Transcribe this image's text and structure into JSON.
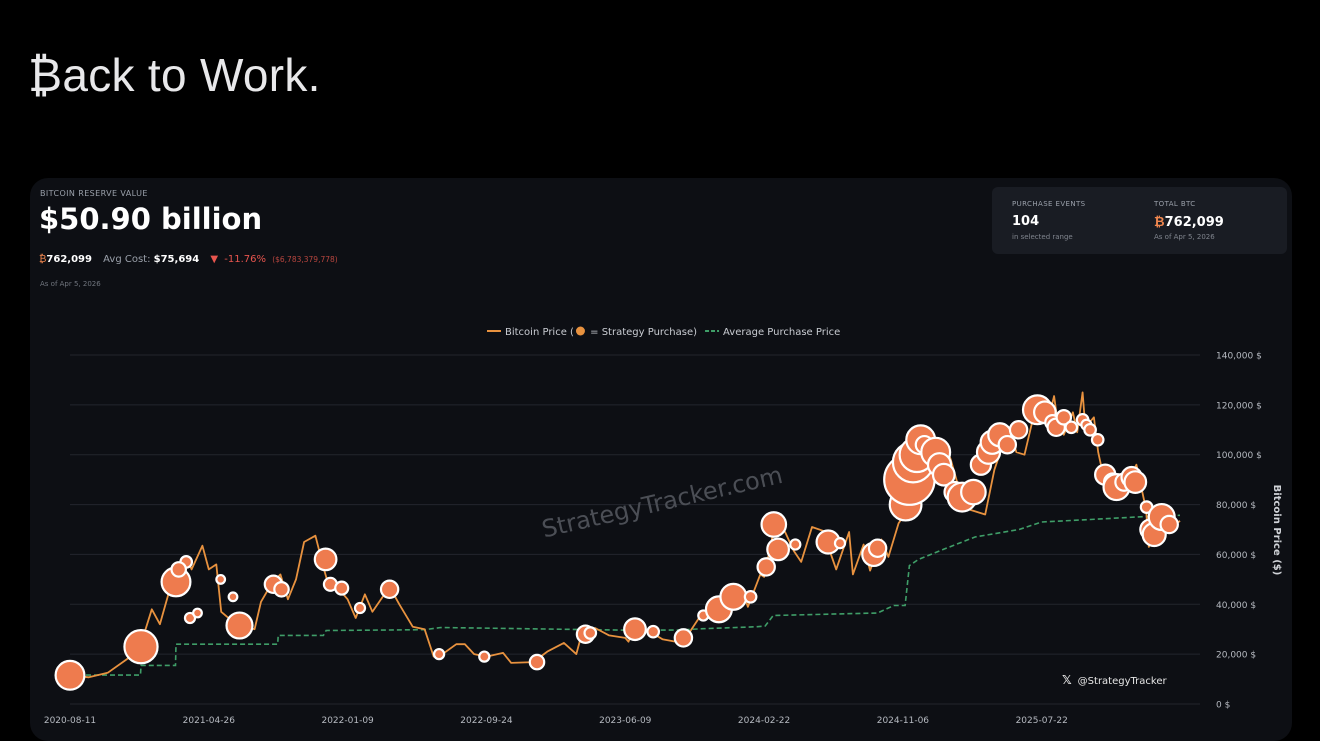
{
  "headline": "₿ack to Work.",
  "card": {
    "reserve_label": "BITCOIN RESERVE VALUE",
    "reserve_value": "$50.90 billion",
    "btc_symbol": "₿",
    "btc_holdings": "762,099",
    "avg_cost_label": "Avg Cost:",
    "avg_cost": "$75,694",
    "change_arrow": "▼",
    "change_pct": "-11.76%",
    "change_abs": "($6,783,379,778)",
    "as_of": "As of Apr 5, 2026"
  },
  "stats": {
    "events_label": "PURCHASE EVENTS",
    "events_value": "104",
    "events_note": "in selected range",
    "total_label": "TOTAL BTC",
    "total_symbol": "₿",
    "total_value": "762,099",
    "total_note": "As of Apr 5, 2026"
  },
  "watermark": "StrategyTracker.com",
  "social": {
    "icon": "x-logo-icon",
    "handle": "@StrategyTracker"
  },
  "colors": {
    "price": "#e8923f",
    "purchase": "#ee7b4e",
    "avg": "#3f9e68",
    "grid": "#23262d"
  },
  "chart_data": {
    "type": "line",
    "legend": [
      {
        "text": "Bitcoin Price (",
        "icon": "coin-icon",
        "text2": " = Strategy Purchase)"
      },
      {
        "text": "Average Purchase Price"
      }
    ],
    "legend_placement": "top",
    "ylabel": "Bitcoin Price ($)",
    "ylim": [
      0,
      140000
    ],
    "xlim": [
      "2020-08-11",
      "2026-04-05"
    ],
    "x_ticks": [
      "2020-08-11",
      "2021-04-26",
      "2022-01-09",
      "2022-09-24",
      "2023-06-09",
      "2024-02-22",
      "2024-11-06",
      "2025-07-22"
    ],
    "y_ticks": [
      "0 $",
      "20,000 $",
      "40,000 $",
      "60,000 $",
      "80,000 $",
      "100,000 $",
      "120,000 $",
      "140,000 $"
    ],
    "y_tick_values": [
      0,
      20000,
      40000,
      60000,
      80000,
      100000,
      120000,
      140000
    ],
    "grid": true,
    "series": [
      {
        "name": "Bitcoin Price",
        "style": "line",
        "points": [
          [
            "2020-08-11",
            11500
          ],
          [
            "2020-09-15",
            10700
          ],
          [
            "2020-10-20",
            12500
          ],
          [
            "2020-11-25",
            18000
          ],
          [
            "2020-12-20",
            23500
          ],
          [
            "2021-01-10",
            38000
          ],
          [
            "2021-01-25",
            32000
          ],
          [
            "2021-02-15",
            48000
          ],
          [
            "2021-02-25",
            46000
          ],
          [
            "2021-03-15",
            59000
          ],
          [
            "2021-03-25",
            54000
          ],
          [
            "2021-04-14",
            63500
          ],
          [
            "2021-04-26",
            54000
          ],
          [
            "2021-05-10",
            56000
          ],
          [
            "2021-05-19",
            37000
          ],
          [
            "2021-05-30",
            35000
          ],
          [
            "2021-06-22",
            31500
          ],
          [
            "2021-07-20",
            30000
          ],
          [
            "2021-08-01",
            41000
          ],
          [
            "2021-08-20",
            48000
          ],
          [
            "2021-09-06",
            52000
          ],
          [
            "2021-09-20",
            42000
          ],
          [
            "2021-10-05",
            50000
          ],
          [
            "2021-10-20",
            65000
          ],
          [
            "2021-11-10",
            67500
          ],
          [
            "2021-11-26",
            54000
          ],
          [
            "2021-12-04",
            48000
          ],
          [
            "2021-12-20",
            47000
          ],
          [
            "2022-01-09",
            42000
          ],
          [
            "2022-01-24",
            34500
          ],
          [
            "2022-02-10",
            44000
          ],
          [
            "2022-02-24",
            37000
          ],
          [
            "2022-03-28",
            47000
          ],
          [
            "2022-04-15",
            40000
          ],
          [
            "2022-05-10",
            31000
          ],
          [
            "2022-06-01",
            30000
          ],
          [
            "2022-06-18",
            19000
          ],
          [
            "2022-07-01",
            19500
          ],
          [
            "2022-07-30",
            24000
          ],
          [
            "2022-08-15",
            24000
          ],
          [
            "2022-09-01",
            20000
          ],
          [
            "2022-09-24",
            19000
          ],
          [
            "2022-10-25",
            20500
          ],
          [
            "2022-11-09",
            16500
          ],
          [
            "2022-12-20",
            16800
          ],
          [
            "2023-01-15",
            21000
          ],
          [
            "2023-02-15",
            24500
          ],
          [
            "2023-03-10",
            20000
          ],
          [
            "2023-03-20",
            28000
          ],
          [
            "2023-04-14",
            30500
          ],
          [
            "2023-05-10",
            27500
          ],
          [
            "2023-06-09",
            26500
          ],
          [
            "2023-06-15",
            25000
          ],
          [
            "2023-06-25",
            30500
          ],
          [
            "2023-07-15",
            30300
          ],
          [
            "2023-08-17",
            26000
          ],
          [
            "2023-09-11",
            25000
          ],
          [
            "2023-10-01",
            27000
          ],
          [
            "2023-10-24",
            34500
          ],
          [
            "2023-11-15",
            37000
          ],
          [
            "2023-12-08",
            44000
          ],
          [
            "2024-01-11",
            46500
          ],
          [
            "2024-01-23",
            39000
          ],
          [
            "2024-02-15",
            52000
          ],
          [
            "2024-02-22",
            51000
          ],
          [
            "2024-03-14",
            73000
          ],
          [
            "2024-04-01",
            69000
          ],
          [
            "2024-04-17",
            61500
          ],
          [
            "2024-05-01",
            57000
          ],
          [
            "2024-05-21",
            71000
          ],
          [
            "2024-06-10",
            69500
          ],
          [
            "2024-07-05",
            54000
          ],
          [
            "2024-07-29",
            69000
          ],
          [
            "2024-08-05",
            52000
          ],
          [
            "2024-08-25",
            64000
          ],
          [
            "2024-09-06",
            53500
          ],
          [
            "2024-09-27",
            66000
          ],
          [
            "2024-10-10",
            59000
          ],
          [
            "2024-10-29",
            72500
          ],
          [
            "2024-11-06",
            75000
          ],
          [
            "2024-11-13",
            90000
          ],
          [
            "2024-11-22",
            98500
          ],
          [
            "2024-12-05",
            103000
          ],
          [
            "2024-12-17",
            106500
          ],
          [
            "2024-12-30",
            92000
          ],
          [
            "2025-01-20",
            106000
          ],
          [
            "2025-02-03",
            98000
          ],
          [
            "2025-02-28",
            79000
          ],
          [
            "2025-03-10",
            78000
          ],
          [
            "2025-04-08",
            76000
          ],
          [
            "2025-04-25",
            94000
          ],
          [
            "2025-05-22",
            111000
          ],
          [
            "2025-06-05",
            101000
          ],
          [
            "2025-06-20",
            100000
          ],
          [
            "2025-07-14",
            122000
          ],
          [
            "2025-07-22",
            119000
          ],
          [
            "2025-08-02",
            113000
          ],
          [
            "2025-08-14",
            123500
          ],
          [
            "2025-08-20",
            114000
          ],
          [
            "2025-09-01",
            108000
          ],
          [
            "2025-09-18",
            117000
          ],
          [
            "2025-09-26",
            109000
          ],
          [
            "2025-10-06",
            125000
          ],
          [
            "2025-10-11",
            111000
          ],
          [
            "2025-10-27",
            115000
          ],
          [
            "2025-11-04",
            101000
          ],
          [
            "2025-11-21",
            84000
          ],
          [
            "2025-12-05",
            92000
          ],
          [
            "2025-12-25",
            87000
          ],
          [
            "2026-01-14",
            96000
          ],
          [
            "2026-02-01",
            78000
          ],
          [
            "2026-02-06",
            63000
          ],
          [
            "2026-02-20",
            67000
          ],
          [
            "2026-03-10",
            69000
          ],
          [
            "2026-03-25",
            71500
          ],
          [
            "2026-04-05",
            73500
          ]
        ]
      },
      {
        "name": "Average Purchase Price",
        "style": "dashed",
        "points": [
          [
            "2020-08-11",
            11600
          ],
          [
            "2020-12-20",
            11600
          ],
          [
            "2020-12-21",
            15500
          ],
          [
            "2021-02-23",
            15500
          ],
          [
            "2021-02-24",
            24000
          ],
          [
            "2021-09-01",
            24000
          ],
          [
            "2021-09-02",
            27500
          ],
          [
            "2021-11-25",
            27500
          ],
          [
            "2021-11-30",
            29500
          ],
          [
            "2022-06-01",
            29800
          ],
          [
            "2022-07-01",
            30700
          ],
          [
            "2023-06-15",
            29600
          ],
          [
            "2023-09-15",
            29700
          ],
          [
            "2023-11-01",
            30200
          ],
          [
            "2024-02-10",
            31000
          ],
          [
            "2024-02-24",
            31300
          ],
          [
            "2024-03-10",
            35500
          ],
          [
            "2024-09-20",
            36500
          ],
          [
            "2024-10-20",
            39500
          ],
          [
            "2024-11-10",
            39500
          ],
          [
            "2024-11-18",
            55500
          ],
          [
            "2024-12-05",
            58000
          ],
          [
            "2025-01-20",
            62000
          ],
          [
            "2025-03-20",
            67000
          ],
          [
            "2025-06-10",
            70000
          ],
          [
            "2025-07-22",
            73000
          ],
          [
            "2025-10-20",
            74000
          ],
          [
            "2026-02-01",
            75200
          ],
          [
            "2026-04-05",
            75694
          ]
        ]
      },
      {
        "name": "Strategy Purchase",
        "style": "bubbles",
        "points": [
          [
            "2020-08-11",
            11500,
            20
          ],
          [
            "2020-12-21",
            23000,
            23
          ],
          [
            "2021-02-24",
            49000,
            20
          ],
          [
            "2021-03-15",
            57000,
            8
          ],
          [
            "2021-03-01",
            54000,
            10
          ],
          [
            "2021-03-22",
            34500,
            7
          ],
          [
            "2021-04-05",
            36500,
            6
          ],
          [
            "2021-05-18",
            50000,
            6
          ],
          [
            "2021-06-10",
            43000,
            6
          ],
          [
            "2021-06-22",
            31500,
            18
          ],
          [
            "2021-08-24",
            48000,
            12
          ],
          [
            "2021-09-08",
            46000,
            10
          ],
          [
            "2021-11-29",
            58000,
            15
          ],
          [
            "2021-12-08",
            48000,
            9
          ],
          [
            "2021-12-29",
            46500,
            9
          ],
          [
            "2022-02-01",
            38500,
            7
          ],
          [
            "2022-03-28",
            46000,
            12
          ],
          [
            "2022-06-28",
            20000,
            7
          ],
          [
            "2022-09-20",
            19000,
            7
          ],
          [
            "2022-12-27",
            16800,
            10
          ],
          [
            "2023-03-27",
            28000,
            12
          ],
          [
            "2023-04-05",
            28500,
            8
          ],
          [
            "2023-06-27",
            30000,
            15
          ],
          [
            "2023-07-31",
            29000,
            8
          ],
          [
            "2023-09-25",
            26500,
            12
          ],
          [
            "2023-11-01",
            35500,
            7
          ],
          [
            "2023-11-30",
            38000,
            18
          ],
          [
            "2023-12-27",
            43000,
            18
          ],
          [
            "2024-01-28",
            43000,
            8
          ],
          [
            "2024-02-26",
            55000,
            12
          ],
          [
            "2024-03-11",
            72000,
            17
          ],
          [
            "2024-03-19",
            62000,
            15
          ],
          [
            "2024-04-20",
            64000,
            7
          ],
          [
            "2024-06-20",
            65000,
            16
          ],
          [
            "2024-07-12",
            64500,
            7
          ],
          [
            "2024-09-13",
            60000,
            16
          ],
          [
            "2024-09-20",
            62500,
            12
          ],
          [
            "2024-11-11",
            80000,
            22
          ],
          [
            "2024-11-18",
            90000,
            35
          ],
          [
            "2024-11-25",
            97000,
            28
          ],
          [
            "2024-12-02",
            100000,
            24
          ],
          [
            "2024-12-09",
            106000,
            20
          ],
          [
            "2024-12-16",
            104000,
            12
          ],
          [
            "2025-01-06",
            101000,
            20
          ],
          [
            "2025-01-13",
            96000,
            16
          ],
          [
            "2025-01-21",
            92000,
            15
          ],
          [
            "2025-02-10",
            85000,
            14
          ],
          [
            "2025-02-24",
            83000,
            20
          ],
          [
            "2025-03-17",
            85000,
            17
          ],
          [
            "2025-03-31",
            96000,
            14
          ],
          [
            "2025-04-14",
            101000,
            16
          ],
          [
            "2025-04-21",
            105000,
            16
          ],
          [
            "2025-05-05",
            108000,
            16
          ],
          [
            "2025-05-19",
            104000,
            12
          ],
          [
            "2025-06-09",
            110000,
            12
          ],
          [
            "2025-07-14",
            118000,
            20
          ],
          [
            "2025-07-28",
            117000,
            15
          ],
          [
            "2025-08-11",
            113000,
            10
          ],
          [
            "2025-08-18",
            111000,
            12
          ],
          [
            "2025-09-01",
            115000,
            10
          ],
          [
            "2025-09-15",
            111000,
            8
          ],
          [
            "2025-10-06",
            114000,
            8
          ],
          [
            "2025-10-13",
            112000,
            7
          ],
          [
            "2025-10-20",
            110000,
            8
          ],
          [
            "2025-11-03",
            106000,
            8
          ],
          [
            "2025-11-17",
            92000,
            14
          ],
          [
            "2025-12-01",
            89000,
            12
          ],
          [
            "2025-12-08",
            87000,
            18
          ],
          [
            "2025-12-22",
            89000,
            12
          ],
          [
            "2026-01-05",
            91000,
            14
          ],
          [
            "2026-01-12",
            89000,
            15
          ],
          [
            "2026-02-02",
            79000,
            8
          ],
          [
            "2026-02-09",
            70000,
            14
          ],
          [
            "2026-02-16",
            68000,
            16
          ],
          [
            "2026-03-02",
            75000,
            18
          ],
          [
            "2026-03-16",
            72000,
            12
          ]
        ]
      }
    ]
  }
}
